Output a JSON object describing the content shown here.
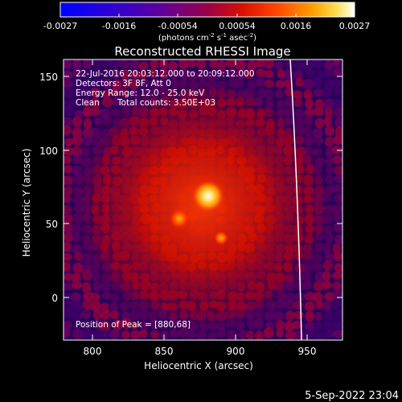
{
  "colorbar": {
    "tick_labels": [
      "-0.0027",
      "-0.0016",
      "-0.00054",
      "0.00054",
      "0.0016",
      "0.0027"
    ],
    "unit_label": "(photons cm",
    "unit_exp1": "-2",
    "unit_mid": " s",
    "unit_exp2": "-1",
    "unit_mid2": " asec",
    "unit_exp3": "-2",
    "unit_end": ")"
  },
  "plot": {
    "title": "Reconstructed RHESSI Image",
    "xlabel": "Heliocentric X (arcsec)",
    "ylabel": "Heliocentric Y (arcsec)",
    "x_ticks": [
      "800",
      "850",
      "900",
      "950"
    ],
    "y_ticks": [
      "0",
      "50",
      "100",
      "150"
    ],
    "xlim": [
      779,
      971
    ],
    "ylim": [
      -30,
      158
    ],
    "info": {
      "line1": "22-Jul-2016 20:03:12.000 to 20:09:12.000",
      "line2": "Detectors: 3F 8F, Att 0",
      "line3": "Energy Range: 12.0 - 25.0 keV",
      "line4_a": "Clean",
      "line4_b": "Total counts: 3.50E+03"
    },
    "peak_label": "Position of Peak = [880,68]",
    "peak": [
      880,
      68
    ]
  },
  "footer": {
    "date": "5-Sep-2022 23:04"
  }
}
